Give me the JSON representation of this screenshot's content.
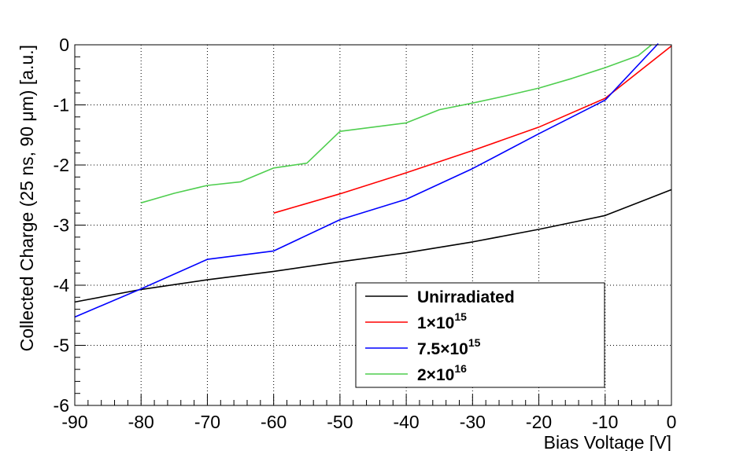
{
  "chart_data": {
    "type": "line",
    "title": "",
    "xlabel": "Bias Voltage [V]",
    "ylabel": "Collected Charge (25 ns, 90 μm) [a.u.]",
    "xlim": [
      -90,
      0
    ],
    "ylim": [
      -6,
      0
    ],
    "x_ticks": [
      "-90",
      "-80",
      "-70",
      "-60",
      "-50",
      "-40",
      "-30",
      "-20",
      "-10",
      "0"
    ],
    "y_ticks": [
      "-6",
      "-5",
      "-4",
      "-3",
      "-2",
      "-1",
      "0"
    ],
    "grid": true,
    "legend_position": "bottom-right",
    "series": [
      {
        "name": "Unirradiated",
        "label_base": "Unirradiated",
        "label_exp": "",
        "color": "#000000",
        "x": [
          -90,
          -80,
          -70,
          -60,
          -50,
          -40,
          -30,
          -20,
          -10,
          0
        ],
        "y": [
          -4.28,
          -4.07,
          -3.91,
          -3.77,
          -3.61,
          -3.46,
          -3.28,
          -3.07,
          -2.84,
          -2.41
        ]
      },
      {
        "name": "1×10^15",
        "label_base": "1×10",
        "label_exp": "15",
        "color": "#ff0000",
        "x": [
          -60,
          -50,
          -40,
          -30,
          -20,
          -10,
          0
        ],
        "y": [
          -2.8,
          -2.48,
          -2.13,
          -1.76,
          -1.37,
          -0.89,
          -0.02
        ]
      },
      {
        "name": "7.5×10^15",
        "label_base": "7.5×10",
        "label_exp": "15",
        "color": "#0000ff",
        "x": [
          -90,
          -80,
          -70,
          -60,
          -50,
          -40,
          -30,
          -20,
          -10,
          -2
        ],
        "y": [
          -4.53,
          -4.06,
          -3.57,
          -3.43,
          -2.91,
          -2.57,
          -2.06,
          -1.48,
          -0.92,
          0.02
        ]
      },
      {
        "name": "2×10^16",
        "label_base": "2×10",
        "label_exp": "16",
        "color": "#4fce4f",
        "x": [
          -80,
          -75,
          -70,
          -65,
          -60,
          -55,
          -50,
          -40,
          -35,
          -30,
          -25,
          -20,
          -15,
          -10,
          -5,
          -3
        ],
        "y": [
          -2.63,
          -2.47,
          -2.34,
          -2.28,
          -2.05,
          -1.97,
          -1.44,
          -1.3,
          -1.08,
          -0.97,
          -0.85,
          -0.72,
          -0.56,
          -0.38,
          -0.18,
          0.0
        ]
      }
    ]
  }
}
